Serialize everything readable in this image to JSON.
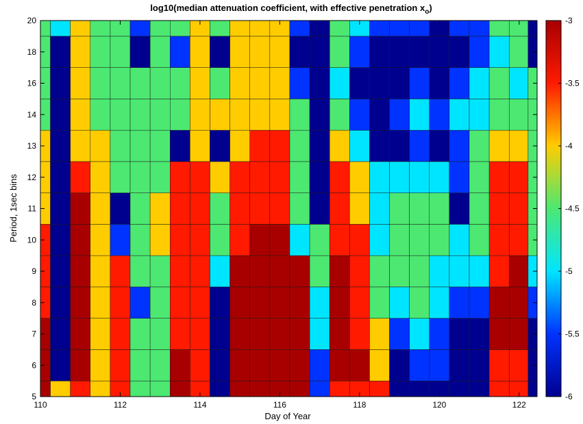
{
  "chart_data": {
    "type": "heatmap",
    "title_main": "log10(median attenuation coefficient, with effective penetration x",
    "title_sub": "o",
    "title_end": ")",
    "xlabel": "Day of Year",
    "ylabel": "Period, 1sec bins",
    "xlim": [
      110,
      122.45
    ],
    "ylim": [
      5,
      20
    ],
    "x_ticks": [
      "110",
      "112",
      "114",
      "116",
      "118",
      "120",
      "122"
    ],
    "y_ticks": [
      "5",
      "6",
      "7",
      "8",
      "9",
      "10",
      "11",
      "12",
      "13",
      "14",
      "16",
      "18",
      "20"
    ],
    "colorbar": {
      "range": [
        -6,
        -3
      ],
      "ticks": [
        "-3",
        "-3.5",
        "-4",
        "-4.5",
        "-5",
        "-5.5",
        "-6"
      ],
      "colors": [
        "#00008f",
        "#0033ff",
        "#00e5ff",
        "#4ce872",
        "#ffcc00",
        "#ff1a00",
        "#a80000"
      ]
    },
    "x": [
      110,
      110.5,
      111,
      111.5,
      112,
      112.5,
      113,
      113.5,
      114,
      114.5,
      115,
      115.5,
      116,
      116.5,
      117,
      117.5,
      118,
      118.5,
      119,
      119.5,
      120,
      120.5,
      121,
      121.5,
      122,
      122.45
    ],
    "y": [
      5,
      6,
      7,
      8,
      9,
      10,
      11,
      12,
      13,
      14,
      16,
      18,
      20
    ],
    "z": [
      [
        -3.4,
        -4.2,
        -3.6,
        -4.1,
        -3.5,
        -4.6,
        -4.4,
        -3.4,
        -3.6,
        -5.9,
        -3.1,
        -3.0,
        -3.1,
        -3.4,
        -5.5,
        -3.5,
        -3.6,
        -3.8,
        -6.0,
        -5.6,
        -5.8,
        -6.0,
        -5.9,
        -3.5,
        -3.7,
        -5.9
      ],
      [
        -3.4,
        -5.7,
        -3.3,
        -4.1,
        -3.5,
        -4.7,
        -4.4,
        -3.4,
        -3.6,
        -5.9,
        -3.1,
        -3.0,
        -3.1,
        -3.4,
        -5.3,
        -3.4,
        -3.4,
        -3.9,
        -5.7,
        -5.3,
        -5.5,
        -5.9,
        -5.8,
        -3.5,
        -3.6,
        -5.8
      ],
      [
        -3.4,
        -5.8,
        -3.3,
        -4.2,
        -3.5,
        -4.7,
        -4.4,
        -3.5,
        -3.6,
        -6.0,
        -3.1,
        -3.0,
        -3.0,
        -3.3,
        -5.0,
        -3.4,
        -3.5,
        -4.2,
        -5.2,
        -4.8,
        -5.2,
        -5.7,
        -5.6,
        -3.4,
        -3.4,
        -5.6
      ],
      [
        -3.5,
        -5.7,
        -3.3,
        -4.2,
        -3.5,
        -5.5,
        -4.4,
        -3.5,
        -3.6,
        -5.8,
        -3.2,
        -3.0,
        -3.0,
        -3.2,
        -4.8,
        -3.1,
        -3.6,
        -4.5,
        -4.8,
        -4.6,
        -5.0,
        -5.2,
        -5.5,
        -3.4,
        -3.4,
        -5.3
      ],
      [
        -3.6,
        -5.6,
        -3.3,
        -4.2,
        -3.6,
        -4.7,
        -4.4,
        -3.5,
        -3.6,
        -4.8,
        -3.4,
        -3.2,
        -3.1,
        -3.4,
        -4.5,
        -3.3,
        -3.7,
        -4.6,
        -4.7,
        -4.5,
        -4.8,
        -5.0,
        -5.1,
        -3.5,
        -3.4,
        -4.9
      ],
      [
        -3.7,
        -5.7,
        -3.3,
        -4.2,
        -5.4,
        -4.6,
        -4.2,
        -3.5,
        -3.6,
        -4.4,
        -3.5,
        -3.4,
        -3.3,
        -4.9,
        -4.3,
        -3.5,
        -3.8,
        -4.8,
        -4.6,
        -4.4,
        -4.6,
        -4.9,
        -4.7,
        -3.6,
        -3.5,
        -4.5
      ],
      [
        -4.0,
        -5.8,
        -3.3,
        -4.2,
        -5.6,
        -4.5,
        -4.2,
        -3.7,
        -3.7,
        -4.3,
        -3.6,
        -3.5,
        -3.5,
        -4.6,
        -5.6,
        -3.6,
        -3.9,
        -4.9,
        -4.7,
        -4.4,
        -4.6,
        -5.9,
        -4.6,
        -3.6,
        -3.6,
        -4.4
      ],
      [
        -4.1,
        -5.9,
        -3.5,
        -4.2,
        -4.5,
        -4.4,
        -4.3,
        -3.8,
        -3.8,
        -4.2,
        -3.7,
        -3.6,
        -3.6,
        -4.5,
        -5.8,
        -3.8,
        -4.2,
        -5.1,
        -5.0,
        -4.8,
        -5.0,
        -5.4,
        -4.6,
        -3.8,
        -3.8,
        -4.4
      ],
      [
        -4.1,
        -5.9,
        -3.9,
        -4.2,
        -4.5,
        -4.4,
        -4.3,
        -5.7,
        -4.0,
        -5.8,
        -3.9,
        -3.8,
        -3.8,
        -4.6,
        -5.8,
        -4.2,
        -5.0,
        -5.6,
        -5.7,
        -5.3,
        -5.6,
        -5.2,
        -4.7,
        -4.0,
        -4.2,
        -4.4
      ],
      [
        -4.3,
        -5.8,
        -4.0,
        -4.3,
        -4.5,
        -4.4,
        -4.3,
        -4.6,
        -4.0,
        -4.2,
        -4.1,
        -4.0,
        -4.0,
        -4.5,
        -5.6,
        -4.7,
        -5.4,
        -5.8,
        -5.3,
        -5.0,
        -5.4,
        -5.0,
        -4.8,
        -4.3,
        -4.5,
        -4.5
      ],
      [
        -4.5,
        -5.9,
        -4.1,
        -4.3,
        -4.6,
        -4.5,
        -4.3,
        -4.6,
        -4.1,
        -4.3,
        -4.2,
        -4.2,
        -4.1,
        -5.5,
        -5.9,
        -4.9,
        -5.6,
        -5.9,
        -5.6,
        -5.4,
        -5.8,
        -5.4,
        -5.1,
        -4.7,
        -4.8,
        -4.6
      ],
      [
        -4.5,
        -5.9,
        -4.1,
        -4.3,
        -4.5,
        -5.9,
        -4.4,
        -5.3,
        -4.1,
        -5.8,
        -4.2,
        -4.2,
        -4.2,
        -5.7,
        -5.9,
        -4.7,
        -5.3,
        -5.9,
        -5.7,
        -5.6,
        -5.9,
        -5.8,
        -5.4,
        -4.8,
        -4.7,
        -5.8
      ],
      [
        -4.6,
        -5.0,
        -4.1,
        -4.4,
        -4.6,
        -5.2,
        -4.3,
        -4.6,
        -4.2,
        -4.4,
        -4.2,
        -4.2,
        -4.1,
        -5.3,
        -5.9,
        -4.5,
        -5.0,
        -5.3,
        -5.4,
        -5.5,
        -5.8,
        -5.5,
        -5.2,
        -4.7,
        -4.5,
        -5.7
      ]
    ]
  }
}
